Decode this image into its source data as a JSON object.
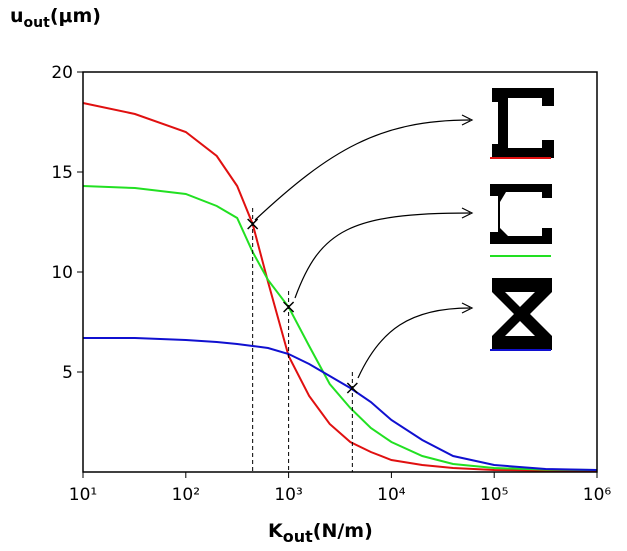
{
  "chart_data": {
    "type": "line",
    "ylabel": [
      "u",
      "out",
      "(μm)"
    ],
    "xlabel": [
      "K",
      "out",
      "(N/m)"
    ],
    "xscale": "log",
    "xlim": [
      10,
      1000000
    ],
    "xticks": [
      {
        "value": 10,
        "label": "10¹"
      },
      {
        "value": 100,
        "label": "10²"
      },
      {
        "value": 1000,
        "label": "10³"
      },
      {
        "value": 10000,
        "label": "10⁴"
      },
      {
        "value": 100000,
        "label": "10⁵"
      },
      {
        "value": 1000000,
        "label": "10⁶"
      }
    ],
    "ylim": [
      0,
      20
    ],
    "yticks": [
      5,
      10,
      15,
      20
    ],
    "x": [
      10,
      32,
      100,
      200,
      316,
      447,
      631,
      1000,
      1585,
      2512,
      3981,
      6310,
      10000,
      19953,
      39811,
      100000,
      316228,
      1000000
    ],
    "series": [
      {
        "color": "#e01010",
        "values": [
          18.45,
          17.9,
          17.0,
          15.8,
          14.3,
          12.4,
          9.5,
          5.8,
          3.8,
          2.4,
          1.5,
          1.0,
          0.6,
          0.35,
          0.2,
          0.1,
          0.07,
          0.05
        ]
      },
      {
        "color": "#22e022",
        "values": [
          14.3,
          14.2,
          13.9,
          13.3,
          12.7,
          11.0,
          9.6,
          8.25,
          6.3,
          4.4,
          3.2,
          2.2,
          1.5,
          0.8,
          0.4,
          0.2,
          0.12,
          0.1
        ]
      },
      {
        "color": "#1010d0",
        "values": [
          6.7,
          6.7,
          6.6,
          6.5,
          6.4,
          6.3,
          6.2,
          5.9,
          5.4,
          4.8,
          4.2,
          3.5,
          2.6,
          1.6,
          0.8,
          0.35,
          0.15,
          0.1
        ]
      }
    ],
    "markers": [
      {
        "x": 447,
        "y": 12.4
      },
      {
        "x": 1000,
        "y": 8.25
      },
      {
        "x": 4170,
        "y": 4.2
      }
    ]
  }
}
